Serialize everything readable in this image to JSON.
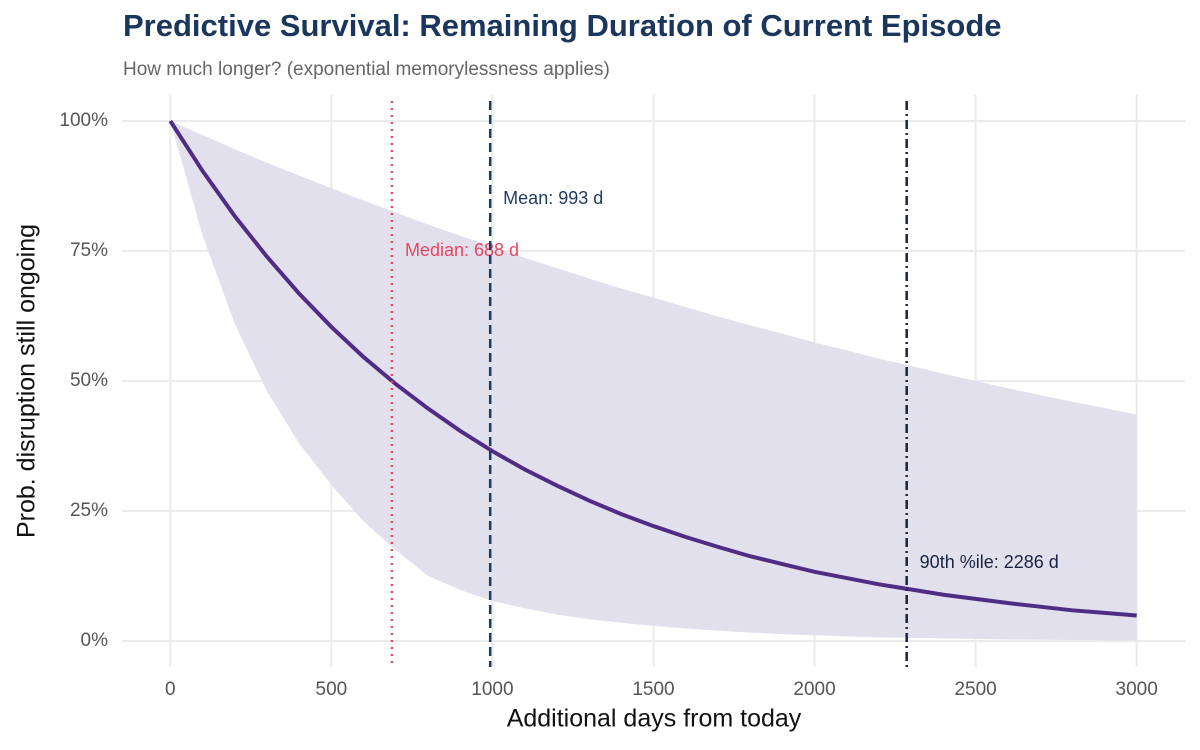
{
  "chart_data": {
    "type": "line",
    "title": "Predictive Survival: Remaining Duration of Current Episode",
    "subtitle": "How much longer? (exponential memorylessness applies)",
    "x_label": "Additional days from today",
    "y_label": "Prob. disruption still ongoing",
    "x": [
      0,
      100,
      200,
      300,
      400,
      500,
      600,
      700,
      800,
      900,
      1000,
      1100,
      1200,
      1300,
      1400,
      1500,
      1600,
      1700,
      1800,
      1900,
      2000,
      2100,
      2200,
      2300,
      2400,
      2500,
      2600,
      2700,
      2800,
      2900,
      3000
    ],
    "series": [
      {
        "color": "#4f2d84",
        "values": [
          100,
          90.4,
          81.7,
          73.9,
          66.8,
          60.4,
          54.6,
          49.4,
          44.7,
          40.4,
          36.5,
          33.0,
          29.9,
          27.0,
          24.4,
          22.1,
          20.0,
          18.1,
          16.3,
          14.8,
          13.3,
          12.1,
          10.9,
          9.9,
          8.9,
          8.1,
          7.3,
          6.6,
          5.9,
          5.4,
          4.9
        ]
      }
    ],
    "band": {
      "color": "#e3e0ed",
      "upper": [
        100,
        97.3,
        94.6,
        92.0,
        89.5,
        87.1,
        84.7,
        82.4,
        80.1,
        77.9,
        75.8,
        73.7,
        71.7,
        69.7,
        67.8,
        66.0,
        64.2,
        62.4,
        60.7,
        59.1,
        57.4,
        55.9,
        54.3,
        52.9,
        51.4,
        50.0,
        48.6,
        47.3,
        46.0,
        44.8,
        43.5
      ],
      "lower": [
        100,
        78,
        61,
        48,
        38,
        30,
        23,
        17.5,
        12.5,
        9.8,
        7.7,
        6.3,
        5.1,
        4.2,
        3.5,
        2.9,
        2.4,
        2.0,
        1.6,
        1.3,
        1.1,
        0.9,
        0.7,
        0.6,
        0.5,
        0.4,
        0.3,
        0.25,
        0.2,
        0.15,
        0.1
      ]
    },
    "annotations": [
      {
        "x": 688,
        "y": 75,
        "label": "Median: 688 d",
        "color": "#e8475f",
        "dash": "2 5"
      },
      {
        "x": 993,
        "y": 85,
        "label": "Mean: 993 d",
        "color": "#1f3a5f",
        "dash": "9 5"
      },
      {
        "x": 2286,
        "y": 15,
        "label": "90th %ile: 2286 d",
        "color": "#1a2340",
        "dash": "9 4 2 4"
      }
    ],
    "xlim": [
      -150,
      3150
    ],
    "ylim": [
      -5,
      105
    ],
    "xticks": [
      0,
      500,
      1000,
      1500,
      2000,
      2500,
      3000
    ],
    "yticks": [
      {
        "value": 0,
        "label": "0%"
      },
      {
        "value": 25,
        "label": "25%"
      },
      {
        "value": 50,
        "label": "50%"
      },
      {
        "value": 75,
        "label": "75%"
      },
      {
        "value": 100,
        "label": "100%"
      }
    ],
    "grid": true
  }
}
